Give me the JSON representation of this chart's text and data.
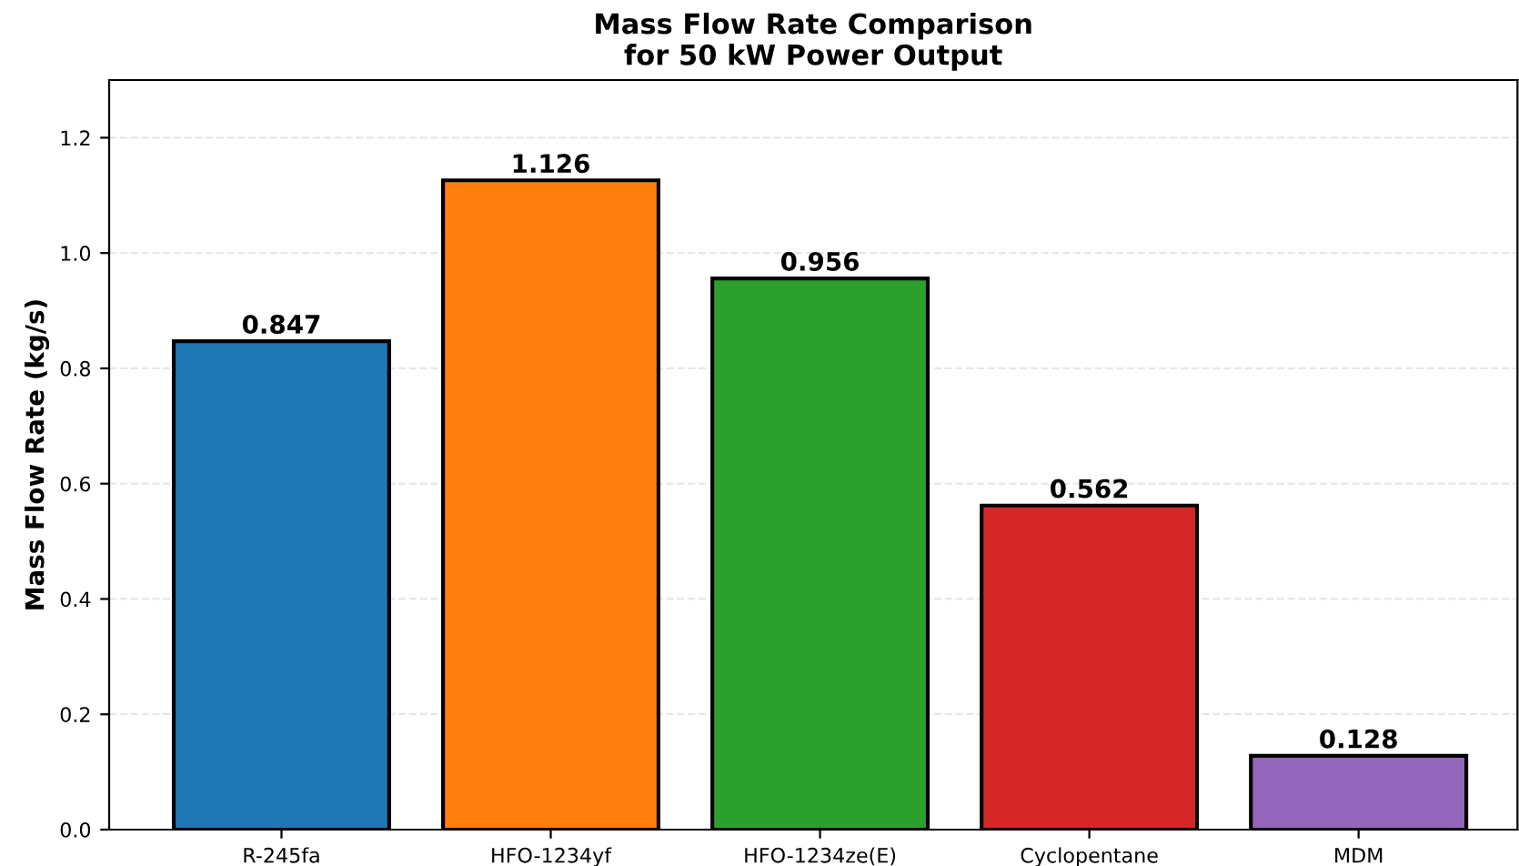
{
  "chart_data": {
    "type": "bar",
    "title": "Mass Flow Rate Comparison\nfor 50 kW Power Output",
    "ylabel": "Mass Flow Rate (kg/s)",
    "categories": [
      "R-245fa",
      "HFO-1234yf",
      "HFO-1234ze(E)",
      "Cyclopentane",
      "MDM"
    ],
    "values": [
      0.847,
      1.126,
      0.956,
      0.562,
      0.128
    ],
    "colors": [
      "#1f77b4",
      "#ff7f0e",
      "#2ca02c",
      "#d62728",
      "#9467bd"
    ],
    "ylim": [
      0,
      1.3
    ],
    "yticks": [
      {
        "value": 0,
        "label": "0.0"
      },
      0.2,
      0.4,
      0.6,
      0.8,
      {
        "value": 1,
        "label": "1.0"
      },
      1.2
    ],
    "grid": "y",
    "data_labels": true
  }
}
